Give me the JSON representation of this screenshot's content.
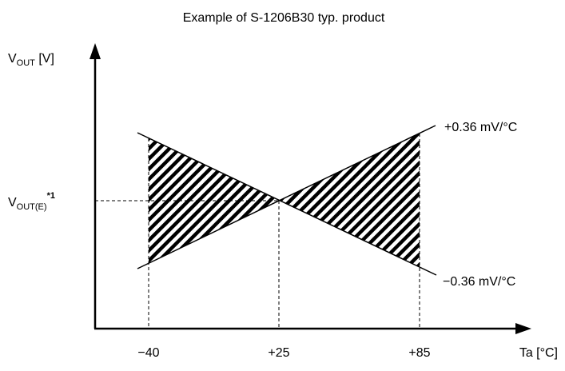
{
  "title": "Example of S-1206B30 typ. product",
  "y_axis": {
    "main": "V",
    "sub": "OUT",
    "unit": " [V]"
  },
  "x_axis": {
    "label": "Ta [°C]",
    "ticks": [
      "−40",
      "+25",
      "+85"
    ]
  },
  "reference": {
    "main": "V",
    "sub": "OUT(E)",
    "footnote": "*1"
  },
  "annotations": {
    "positive_slope": "+0.36 mV/°C",
    "negative_slope": "−0.36 mV/°C"
  },
  "colors": {
    "line": "#000000",
    "hatch": "#000000",
    "background": "#ffffff"
  }
}
